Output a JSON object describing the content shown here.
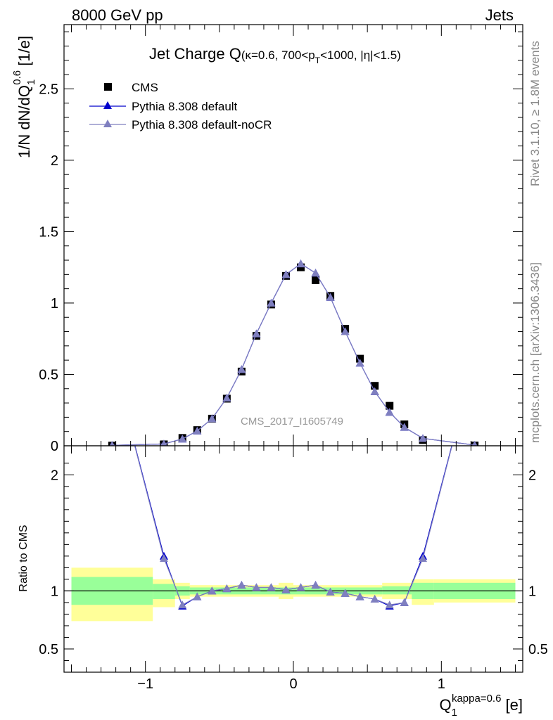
{
  "header": {
    "left": "8000 GeV pp",
    "right": "Jets"
  },
  "side_labels": {
    "rivet": "Rivet 3.1.10, ≥ 1.8M events",
    "mcplots": "mcplots.cern.ch [arXiv:1306.3436]"
  },
  "chart_data": [
    {
      "type": "scatter",
      "title_main": "Jet Charge Q",
      "title_sub": "(κ=0.6, 700<p",
      "title_sub_index": "T",
      "title_sub_tail": "<1000, |η|<1.5)",
      "ylabel": "1/N dN/dQ",
      "ylabel_sub": "1",
      "ylabel_sup": "0.6",
      "ylabel_unit": " [1/e]",
      "watermark": "CMS_2017_I1605749",
      "xlim": [
        -1.55,
        1.55
      ],
      "ylim": [
        0,
        2.95
      ],
      "yticks": [
        0,
        0.5,
        1,
        1.5,
        2,
        2.5
      ],
      "ytick_labels": [
        "0",
        "0.5",
        "1",
        "1.5",
        "2",
        "2.5"
      ],
      "legend_position": "top-left",
      "x": [
        -1.225,
        -0.875,
        -0.75,
        -0.65,
        -0.55,
        -0.45,
        -0.35,
        -0.25,
        -0.15,
        -0.05,
        0.05,
        0.15,
        0.25,
        0.35,
        0.45,
        0.55,
        0.65,
        0.75,
        0.875,
        1.225
      ],
      "series": [
        {
          "name": "CMS",
          "marker": "square",
          "color": "#000000",
          "values": [
            0.001,
            0.01,
            0.055,
            0.11,
            0.19,
            0.33,
            0.52,
            0.77,
            0.99,
            1.19,
            1.25,
            1.16,
            1.05,
            0.82,
            0.61,
            0.42,
            0.28,
            0.15,
            0.04,
            0.002
          ]
        },
        {
          "name": "Pythia 8.308 default",
          "marker": "triangle",
          "color": "#0000cc",
          "values": [
            0.003,
            0.013,
            0.048,
            0.104,
            0.19,
            0.335,
            0.535,
            0.785,
            1.0,
            1.2,
            1.275,
            1.21,
            1.04,
            0.8,
            0.58,
            0.38,
            0.235,
            0.13,
            0.052,
            0.005
          ]
        },
        {
          "name": "Pythia 8.308 default-noCR",
          "marker": "triangle",
          "color": "#7f7fbf",
          "values": [
            0.003,
            0.013,
            0.048,
            0.104,
            0.19,
            0.335,
            0.535,
            0.785,
            1.0,
            1.2,
            1.275,
            1.21,
            1.04,
            0.8,
            0.58,
            0.38,
            0.235,
            0.13,
            0.052,
            0.005
          ]
        }
      ]
    },
    {
      "type": "line",
      "ylabel": "Ratio to CMS",
      "xlabel_main": "Q",
      "xlabel_sub": "1",
      "xlabel_sup": "kappa=0.6",
      "xlabel_unit": " [e]",
      "xlim": [
        -1.55,
        1.55
      ],
      "ylim": [
        0.3,
        2.25
      ],
      "xticks": [
        -1,
        0,
        1
      ],
      "xtick_labels": [
        "−1",
        "0",
        "1"
      ],
      "yticks": [
        0.5,
        1,
        2
      ],
      "ytick_labels": [
        "0.5",
        "1",
        "2"
      ],
      "reference_line": 1,
      "bands": [
        {
          "x": [
            -1.5,
            -0.95
          ],
          "inner": [
            0.88,
            1.12
          ],
          "outer": [
            0.74,
            1.2
          ]
        },
        {
          "x": [
            -0.95,
            -0.8
          ],
          "inner": [
            0.93,
            1.06
          ],
          "outer": [
            0.86,
            1.1
          ]
        },
        {
          "x": [
            -0.8,
            -0.7
          ],
          "inner": [
            0.96,
            1.04
          ],
          "outer": [
            0.93,
            1.07
          ]
        },
        {
          "x": [
            -0.7,
            -0.1
          ],
          "inner": [
            0.97,
            1.03
          ],
          "outer": [
            0.95,
            1.05
          ]
        },
        {
          "x": [
            -0.1,
            0.0
          ],
          "inner": [
            0.97,
            1.03
          ],
          "outer": [
            0.93,
            1.07
          ]
        },
        {
          "x": [
            0.0,
            0.6
          ],
          "inner": [
            0.97,
            1.03
          ],
          "outer": [
            0.95,
            1.05
          ]
        },
        {
          "x": [
            0.6,
            0.8
          ],
          "inner": [
            0.97,
            1.04
          ],
          "outer": [
            0.93,
            1.07
          ]
        },
        {
          "x": [
            0.8,
            0.95
          ],
          "inner": [
            0.93,
            1.07
          ],
          "outer": [
            0.88,
            1.1
          ]
        },
        {
          "x": [
            0.95,
            1.5
          ],
          "inner": [
            0.93,
            1.07
          ],
          "outer": [
            0.9,
            1.1
          ]
        }
      ],
      "x": [
        -1.225,
        -0.875,
        -0.75,
        -0.65,
        -0.55,
        -0.45,
        -0.35,
        -0.25,
        -0.15,
        -0.05,
        0.05,
        0.15,
        0.25,
        0.35,
        0.45,
        0.55,
        0.65,
        0.75,
        0.875,
        1.225
      ],
      "series": [
        {
          "name": "Pythia 8.308 default",
          "color": "#0000cc",
          "values": [
            3.0,
            1.3,
            0.87,
            0.95,
            1.0,
            1.02,
            1.05,
            1.03,
            1.03,
            1.01,
            1.03,
            1.05,
            0.99,
            0.98,
            0.95,
            0.93,
            0.87,
            0.9,
            1.3,
            3.0
          ]
        },
        {
          "name": "Pythia 8.308 default-noCR",
          "color": "#7f7fbf",
          "values": [
            3.0,
            1.28,
            0.88,
            0.95,
            1.0,
            1.02,
            1.05,
            1.03,
            1.03,
            1.01,
            1.03,
            1.05,
            0.99,
            0.98,
            0.95,
            0.93,
            0.88,
            0.9,
            1.28,
            3.0
          ]
        }
      ]
    }
  ]
}
